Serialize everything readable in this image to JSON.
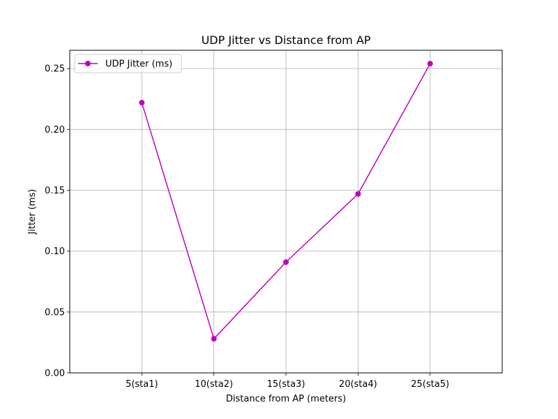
{
  "chart_data": {
    "type": "line",
    "title": "UDP Jitter vs Distance from AP",
    "xlabel": "Distance from AP (meters)",
    "ylabel": "Jitter (ms)",
    "categories": [
      "5(sta1)",
      "10(sta2)",
      "15(sta3)",
      "20(sta4)",
      "25(sta5)"
    ],
    "x": [
      5,
      10,
      15,
      20,
      25
    ],
    "xlim": [
      0,
      30
    ],
    "ylim": [
      0,
      0.265
    ],
    "yticks": [
      0.0,
      0.05,
      0.1,
      0.15,
      0.2,
      0.25
    ],
    "ytick_labels": [
      "0.00",
      "0.05",
      "0.10",
      "0.15",
      "0.20",
      "0.25"
    ],
    "series": [
      {
        "name": "UDP Jitter (ms)",
        "values": [
          0.222,
          0.028,
          0.091,
          0.147,
          0.254
        ],
        "color": "#bf00bf",
        "marker": "circle"
      }
    ],
    "grid": true,
    "legend": "upper-left"
  }
}
